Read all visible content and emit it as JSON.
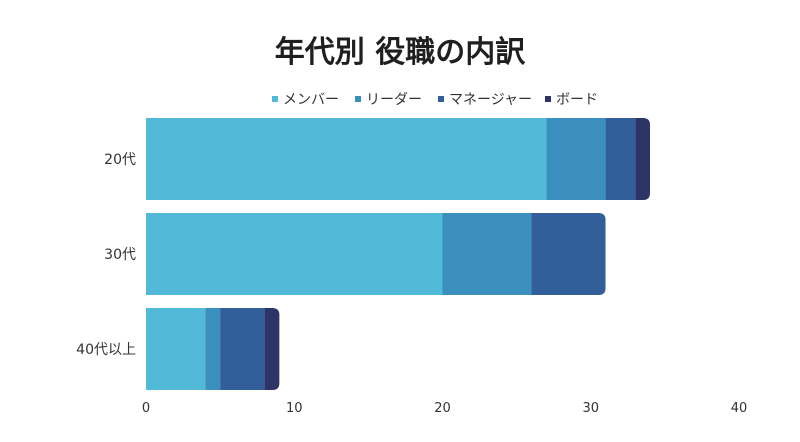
{
  "chart_data": {
    "type": "bar",
    "orientation": "horizontal",
    "stacked": true,
    "title": "年代別 役職の内訳",
    "xlabel": "",
    "ylabel": "",
    "categories": [
      "20代",
      "30代",
      "40代以上"
    ],
    "series": [
      {
        "name": "メンバー",
        "color": "#53b9d8",
        "values": [
          27,
          20,
          4
        ]
      },
      {
        "name": "リーダー",
        "color": "#3a8fbf",
        "values": [
          4,
          6,
          1
        ]
      },
      {
        "name": "マネージャー",
        "color": "#325f9a",
        "values": [
          2,
          5,
          3
        ]
      },
      {
        "name": "ボード",
        "color": "#2d3566",
        "values": [
          1,
          0,
          1
        ]
      }
    ],
    "xlim": [
      0,
      40
    ],
    "xticks": [
      0,
      10,
      20,
      30,
      40
    ],
    "grid": false,
    "legend_position": "top"
  }
}
